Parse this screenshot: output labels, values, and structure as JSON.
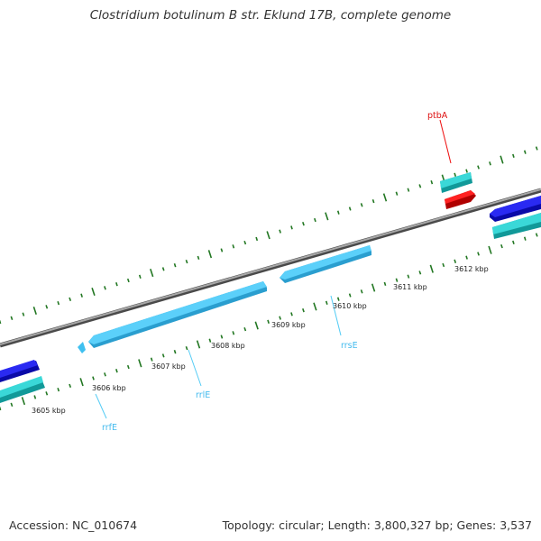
{
  "title": "Clostridium botulinum B str. Eklund 17B, complete genome",
  "footer": {
    "accession": "Accession: NC_010674",
    "stats": "Topology: circular; Length: 3,800,327 bp; Genes: 3,537"
  },
  "ticks": [
    "3605 kbp",
    "3606 kbp",
    "3607 kbp",
    "3608 kbp",
    "3609 kbp",
    "3610 kbp",
    "3611 kbp",
    "3612 kbp"
  ],
  "genes": {
    "ptbA": "ptbA",
    "rrsE": "rrsE",
    "rrlE": "rrlE",
    "rrfE": "rrfE"
  },
  "colors": {
    "backbone": "#888888",
    "rrna": "#55ccf5",
    "cds_forward": "#1a1ae0",
    "cds_teal": "#22cccc",
    "ptbA": "#ee1111",
    "tick_marks": "#227722"
  }
}
